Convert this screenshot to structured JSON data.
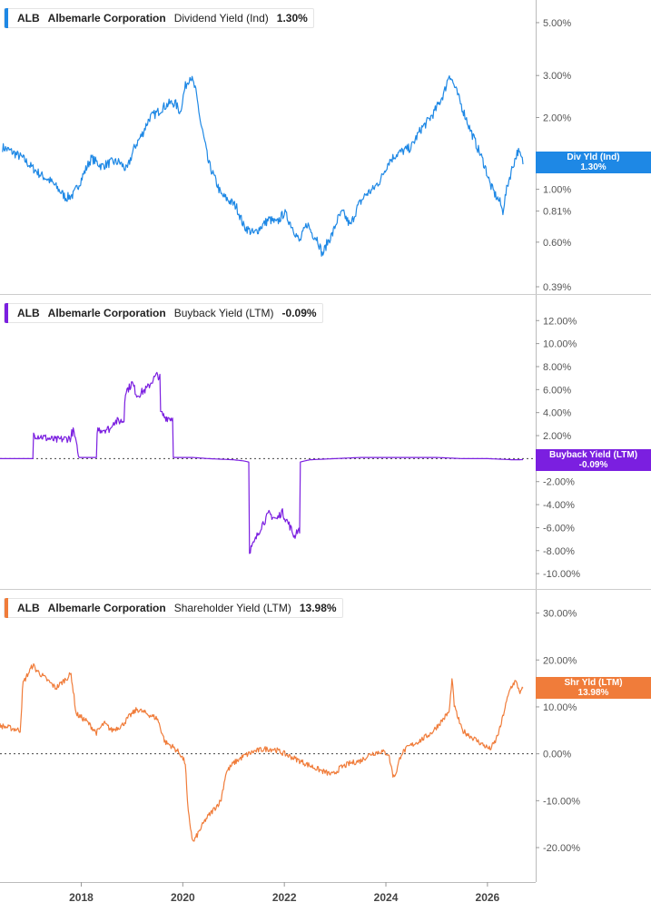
{
  "colors": {
    "dividend": "#1e88e5",
    "buyback": "#7b1fe0",
    "shareholder": "#f07c3a",
    "axis": "#555555",
    "separator": "#cccccc"
  },
  "chart_data": [
    {
      "type": "line",
      "scale": "log",
      "legend": {
        "ticker": "ALB",
        "company": "Albemarle Corporation",
        "metric": "Dividend Yield (Ind)",
        "value": "1.30%"
      },
      "tag": {
        "line1": "Div Yld (Ind)",
        "line2": "1.30%",
        "value": 1.3
      },
      "yticks": [
        5.0,
        3.0,
        2.0,
        1.0,
        0.81,
        0.6,
        0.39
      ],
      "ytick_labels": [
        "5.00%",
        "3.00%",
        "2.00%",
        "1.00%",
        "0.81%",
        "0.60%",
        "0.39%"
      ],
      "ylim": [
        0.39,
        5.8
      ],
      "zero_line": false,
      "series": [
        {
          "x": [
            2016.45,
            2016.6,
            2016.85,
            2017.0,
            2017.2,
            2017.4,
            2017.55,
            2017.7,
            2017.85,
            2018.0,
            2018.2,
            2018.4,
            2018.6,
            2018.75,
            2018.9,
            2019.05,
            2019.2,
            2019.35,
            2019.5,
            2019.6,
            2019.75,
            2019.85,
            2019.95,
            2020.05,
            2020.15,
            2020.25,
            2020.35,
            2020.5,
            2020.6,
            2020.75,
            2020.9,
            2021.05,
            2021.2,
            2021.4,
            2021.55,
            2021.7,
            2021.85,
            2022.0,
            2022.15,
            2022.3,
            2022.45,
            2022.55,
            2022.65,
            2022.75,
            2022.85,
            2022.95,
            2023.05,
            2023.15,
            2023.3,
            2023.45,
            2023.6,
            2023.75,
            2023.9,
            2024.05,
            2024.2,
            2024.35,
            2024.5,
            2024.6,
            2024.7,
            2024.8,
            2024.95,
            2025.05,
            2025.15,
            2025.25,
            2025.35,
            2025.5,
            2025.65,
            2025.8,
            2025.95,
            2026.05,
            2026.15,
            2026.25,
            2026.3,
            2026.4,
            2026.5,
            2026.6,
            2026.7
          ],
          "y": [
            1.5,
            1.45,
            1.35,
            1.25,
            1.15,
            1.08,
            1.0,
            0.92,
            0.95,
            1.1,
            1.35,
            1.25,
            1.3,
            1.3,
            1.2,
            1.5,
            1.7,
            2.0,
            2.1,
            2.2,
            2.3,
            2.3,
            2.1,
            2.7,
            3.0,
            2.6,
            1.9,
            1.3,
            1.15,
            0.95,
            0.9,
            0.85,
            0.7,
            0.65,
            0.7,
            0.75,
            0.72,
            0.8,
            0.7,
            0.6,
            0.72,
            0.65,
            0.62,
            0.53,
            0.6,
            0.65,
            0.75,
            0.8,
            0.7,
            0.85,
            0.95,
            1.0,
            1.1,
            1.3,
            1.4,
            1.45,
            1.5,
            1.65,
            1.8,
            1.9,
            2.1,
            2.3,
            2.55,
            3.05,
            2.7,
            2.2,
            1.8,
            1.5,
            1.25,
            1.05,
            0.95,
            0.88,
            0.8,
            1.05,
            1.25,
            1.45,
            1.3
          ]
        }
      ]
    },
    {
      "type": "line",
      "scale": "linear",
      "legend": {
        "ticker": "ALB",
        "company": "Albemarle Corporation",
        "metric": "Buyback Yield (LTM)",
        "value": "-0.09%"
      },
      "tag": {
        "line1": "Buyback Yield (LTM)",
        "line2": "-0.09%",
        "value": -0.09
      },
      "yticks": [
        12,
        10,
        8,
        6,
        4,
        2,
        -2,
        -4,
        -6,
        -8,
        -10
      ],
      "ytick_labels": [
        "12.00%",
        "10.00%",
        "8.00%",
        "6.00%",
        "4.00%",
        "2.00%",
        "-2.00%",
        "-4.00%",
        "-6.00%",
        "-8.00%",
        "-10.00%"
      ],
      "ylim": [
        -10.7,
        13.6
      ],
      "zero_line": true,
      "series": [
        {
          "x": [
            2016.4,
            2017.05,
            2017.06,
            2017.3,
            2017.5,
            2017.8,
            2017.81,
            2017.85,
            2017.95,
            2018.3,
            2018.31,
            2018.6,
            2018.61,
            2018.85,
            2018.86,
            2018.95,
            2019.0,
            2019.1,
            2019.3,
            2019.4,
            2019.5,
            2019.55,
            2019.56,
            2019.65,
            2019.8,
            2019.81,
            2020.2,
            2020.5,
            2021.0,
            2021.2,
            2021.3,
            2021.31,
            2021.4,
            2021.55,
            2021.7,
            2021.85,
            2021.95,
            2022.1,
            2022.2,
            2022.25,
            2022.3,
            2022.31,
            2022.5,
            2023.0,
            2023.5,
            2024.0,
            2024.5,
            2025.0,
            2025.5,
            2026.0,
            2026.5,
            2026.7
          ],
          "y": [
            0.0,
            0.0,
            2.1,
            1.8,
            1.6,
            1.8,
            2.2,
            2.4,
            0.1,
            0.1,
            2.5,
            2.6,
            3.2,
            3.3,
            5.8,
            6.2,
            6.6,
            5.5,
            6.1,
            6.8,
            7.3,
            7.0,
            4.0,
            3.6,
            3.5,
            0.1,
            0.1,
            0.0,
            -0.1,
            -0.2,
            -0.3,
            -8.0,
            -7.4,
            -5.8,
            -4.8,
            -5.3,
            -4.6,
            -5.8,
            -6.8,
            -6.2,
            -6.4,
            -0.3,
            -0.1,
            0.0,
            0.1,
            0.1,
            0.1,
            0.1,
            0.0,
            0.0,
            -0.1,
            -0.09
          ]
        }
      ]
    },
    {
      "type": "line",
      "scale": "linear",
      "legend": {
        "ticker": "ALB",
        "company": "Albemarle Corporation",
        "metric": "Shareholder Yield (LTM)",
        "value": "13.98%"
      },
      "tag": {
        "line1": "Shr Yld (LTM)",
        "line2": "13.98%",
        "value": 13.98
      },
      "yticks": [
        30,
        20,
        10,
        0,
        -10,
        -20
      ],
      "ytick_labels": [
        "30.00%",
        "20.00%",
        "10.00%",
        "0.00%",
        "-10.00%",
        "-20.00%"
      ],
      "ylim": [
        -25.8,
        33.4
      ],
      "zero_line": true,
      "series": [
        {
          "x": [
            2016.4,
            2016.8,
            2016.85,
            2017.05,
            2017.1,
            2017.3,
            2017.5,
            2017.6,
            2017.8,
            2017.9,
            2018.1,
            2018.3,
            2018.45,
            2018.6,
            2018.8,
            2018.95,
            2019.1,
            2019.3,
            2019.5,
            2019.65,
            2019.8,
            2019.95,
            2020.05,
            2020.1,
            2020.2,
            2020.3,
            2020.45,
            2020.6,
            2020.75,
            2020.85,
            2021.0,
            2021.2,
            2021.4,
            2021.6,
            2021.8,
            2022.0,
            2022.2,
            2022.5,
            2022.7,
            2022.95,
            2023.1,
            2023.3,
            2023.5,
            2023.7,
            2023.9,
            2024.05,
            2024.15,
            2024.2,
            2024.3,
            2024.45,
            2024.7,
            2024.9,
            2025.1,
            2025.25,
            2025.3,
            2025.35,
            2025.5,
            2025.7,
            2025.9,
            2026.05,
            2026.15,
            2026.25,
            2026.35,
            2026.45,
            2026.55,
            2026.65,
            2026.7
          ],
          "y": [
            6.0,
            5.0,
            15.0,
            19.0,
            18.0,
            16.0,
            14.0,
            15.0,
            17.0,
            8.5,
            7.0,
            4.5,
            6.5,
            5.0,
            6.0,
            8.0,
            9.5,
            8.5,
            7.5,
            2.5,
            1.5,
            0.0,
            -2.0,
            -12.0,
            -19.0,
            -17.0,
            -14.0,
            -12.0,
            -10.0,
            -4.0,
            -2.0,
            -0.5,
            0.5,
            1.0,
            1.0,
            0.0,
            -1.0,
            -2.5,
            -3.5,
            -4.5,
            -3.0,
            -2.0,
            -1.5,
            0.0,
            0.5,
            0.0,
            -5.0,
            -4.0,
            0.0,
            1.5,
            3.0,
            4.5,
            7.0,
            9.0,
            16.0,
            10.0,
            5.0,
            3.5,
            2.0,
            1.0,
            2.5,
            5.5,
            10.0,
            14.0,
            15.5,
            13.0,
            13.98
          ]
        }
      ]
    }
  ],
  "xaxis": {
    "ticks": [
      2018,
      2020,
      2022,
      2024,
      2026
    ],
    "labels": [
      "2018",
      "2020",
      "2022",
      "2024",
      "2026"
    ],
    "range": [
      2016.4,
      2026.95
    ]
  }
}
